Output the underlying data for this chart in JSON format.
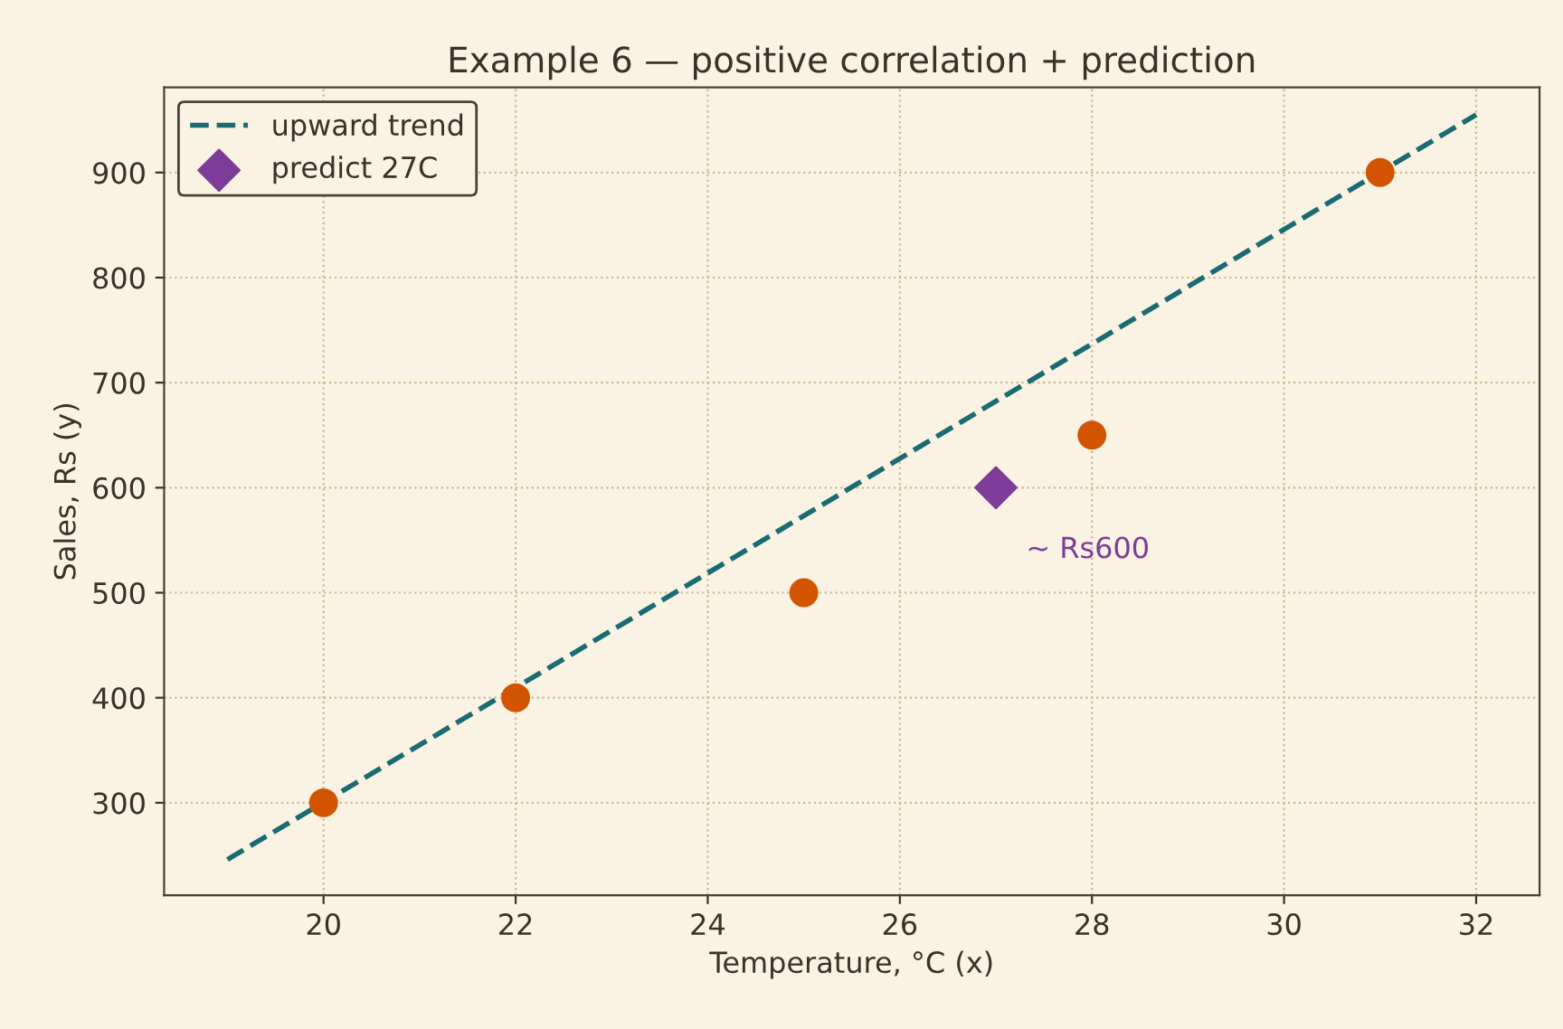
{
  "chart_data": {
    "type": "scatter",
    "title": "Example 6 — positive correlation + prediction",
    "xlabel": "Temperature, °C (x)",
    "ylabel": "Sales, Rs (y)",
    "series": [
      {
        "type": "line",
        "name": "upward trend",
        "color": "#1b6b73",
        "x": [
          19,
          32
        ],
        "values": [
          246,
          955
        ],
        "line_style": "dashed",
        "marker": "none"
      },
      {
        "color": "#d35400",
        "x": [
          20,
          22,
          25,
          28,
          31
        ],
        "values": [
          300,
          400,
          500,
          650,
          900
        ],
        "marker": "circle"
      },
      {
        "name": "predict 27C",
        "color": "#7d3c98",
        "x": [
          27
        ],
        "values": [
          600
        ],
        "marker": "diamond"
      }
    ],
    "annotations": [
      {
        "text": "~ Rs600",
        "x": 27,
        "y": 600
      }
    ],
    "xlim": [
      18.34,
      32.66
    ],
    "ylim": [
      212,
      981
    ],
    "xticks": [
      20,
      22,
      24,
      26,
      28,
      30,
      32
    ],
    "yticks": [
      300,
      400,
      500,
      600,
      700,
      800,
      900
    ],
    "grid": true,
    "legend": "top left"
  }
}
